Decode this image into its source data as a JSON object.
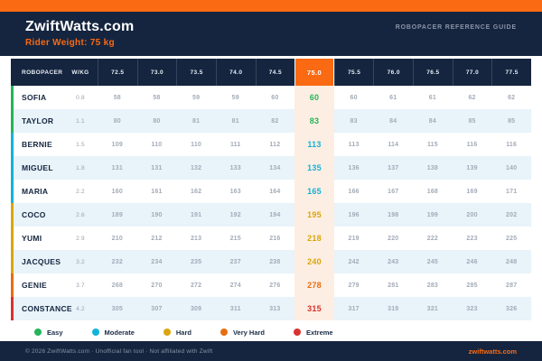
{
  "header": {
    "logo": "ZwiftWatts.com",
    "subtitle": "ROBOPACER REFERENCE GUIDE",
    "rider_weight_label": "Rider Weight: 75 kg"
  },
  "table": {
    "name_header": "ROBOPACER",
    "wkg_header": "W/KG",
    "weight_columns": [
      "72.5",
      "73.0",
      "73.5",
      "74.0",
      "74.5",
      "75.0",
      "75.5",
      "76.0",
      "76.5",
      "77.0",
      "77.5"
    ],
    "highlight_column": "75.0",
    "highlight_index": 5,
    "rows": [
      {
        "name": "SOFIA",
        "wkg": "0.8",
        "difficulty": "easy",
        "values": [
          58,
          58,
          59,
          59,
          60,
          60,
          60,
          61,
          61,
          62,
          62
        ]
      },
      {
        "name": "TAYLOR",
        "wkg": "1.1",
        "difficulty": "easy",
        "values": [
          80,
          80,
          81,
          81,
          82,
          83,
          83,
          84,
          84,
          85,
          85
        ]
      },
      {
        "name": "BERNIE",
        "wkg": "1.5",
        "difficulty": "moderate",
        "values": [
          109,
          110,
          110,
          111,
          112,
          113,
          113,
          114,
          115,
          116,
          116
        ]
      },
      {
        "name": "MIGUEL",
        "wkg": "1.8",
        "difficulty": "moderate",
        "values": [
          131,
          131,
          132,
          133,
          134,
          135,
          136,
          137,
          138,
          139,
          140
        ]
      },
      {
        "name": "MARIA",
        "wkg": "2.2",
        "difficulty": "moderate",
        "values": [
          160,
          161,
          162,
          163,
          164,
          165,
          166,
          167,
          168,
          169,
          171
        ]
      },
      {
        "name": "COCO",
        "wkg": "2.6",
        "difficulty": "hard",
        "values": [
          189,
          190,
          191,
          192,
          194,
          195,
          196,
          198,
          199,
          200,
          202
        ]
      },
      {
        "name": "YUMI",
        "wkg": "2.9",
        "difficulty": "hard",
        "values": [
          210,
          212,
          213,
          215,
          216,
          218,
          219,
          220,
          222,
          223,
          225
        ]
      },
      {
        "name": "JACQUES",
        "wkg": "3.2",
        "difficulty": "hard",
        "values": [
          232,
          234,
          235,
          237,
          238,
          240,
          242,
          243,
          245,
          246,
          248
        ]
      },
      {
        "name": "GENIE",
        "wkg": "3.7",
        "difficulty": "very_hard",
        "values": [
          268,
          270,
          272,
          274,
          276,
          278,
          279,
          281,
          283,
          285,
          287
        ]
      },
      {
        "name": "CONSTANCE",
        "wkg": "4.2",
        "difficulty": "extreme",
        "values": [
          305,
          307,
          309,
          311,
          313,
          315,
          317,
          319,
          321,
          323,
          326
        ]
      }
    ]
  },
  "legend": {
    "items": [
      {
        "label": "Easy",
        "difficulty": "easy"
      },
      {
        "label": "Moderate",
        "difficulty": "moderate"
      },
      {
        "label": "Hard",
        "difficulty": "hard"
      },
      {
        "label": "Very Hard",
        "difficulty": "very_hard"
      },
      {
        "label": "Extreme",
        "difficulty": "extreme"
      }
    ]
  },
  "footer": {
    "left": "© 2026 ZwiftWatts.com · Unofficial fan tool · Not affiliated with Zwift",
    "right": "zwiftwatts.com"
  },
  "colors": {
    "accent_orange": "#f96a13",
    "navy": "#15253f",
    "row_alt_blue": "#e8f3fa",
    "highlight_bg": "#fdeee3",
    "difficulty": {
      "easy": "#24b45b",
      "moderate": "#12b3d8",
      "hard": "#d9a60d",
      "very_hard": "#e86d12",
      "extreme": "#d8332e"
    }
  }
}
